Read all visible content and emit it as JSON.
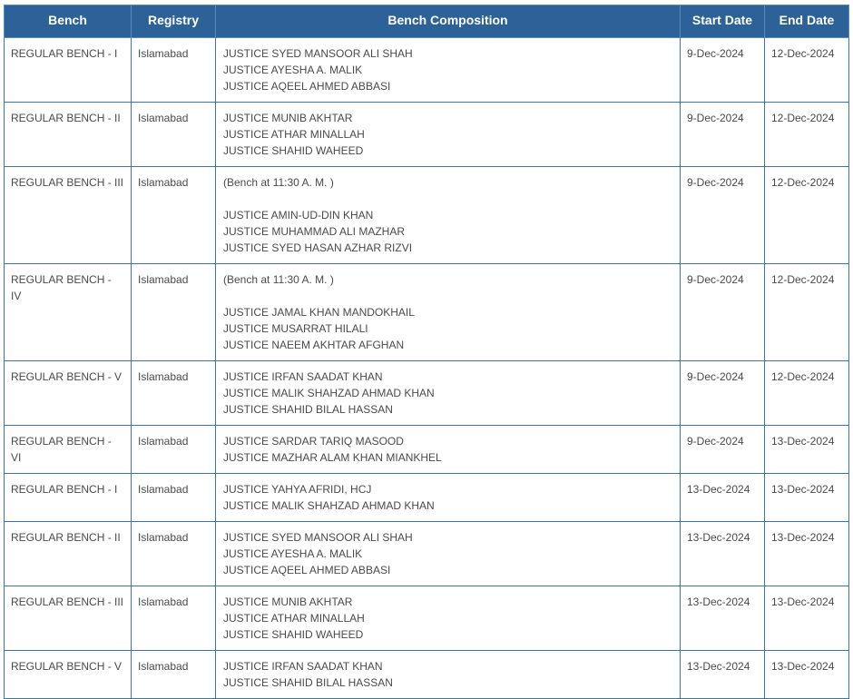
{
  "columns": {
    "bench": "Bench",
    "registry": "Registry",
    "composition": "Bench Composition",
    "start": "Start Date",
    "end": "End Date"
  },
  "rows": [
    {
      "bench": "REGULAR BENCH - I",
      "registry": "Islamabad",
      "note": "",
      "judges": [
        "JUSTICE SYED MANSOOR ALI SHAH",
        "JUSTICE AYESHA A. MALIK",
        "JUSTICE AQEEL AHMED ABBASI"
      ],
      "start": "9-Dec-2024",
      "end": "12-Dec-2024"
    },
    {
      "bench": "REGULAR BENCH - II",
      "registry": "Islamabad",
      "note": "",
      "judges": [
        "JUSTICE MUNIB AKHTAR",
        "JUSTICE ATHAR MINALLAH",
        "JUSTICE SHAHID WAHEED"
      ],
      "start": "9-Dec-2024",
      "end": "12-Dec-2024"
    },
    {
      "bench": "REGULAR BENCH - III",
      "registry": "Islamabad",
      "note": "(Bench at 11:30 A. M. )",
      "judges": [
        "JUSTICE AMIN-UD-DIN KHAN",
        "JUSTICE MUHAMMAD ALI MAZHAR",
        "JUSTICE SYED HASAN AZHAR RIZVI"
      ],
      "start": "9-Dec-2024",
      "end": "12-Dec-2024"
    },
    {
      "bench": "REGULAR BENCH - IV",
      "registry": "Islamabad",
      "note": "(Bench at 11:30 A. M. )",
      "judges": [
        "JUSTICE JAMAL KHAN MANDOKHAIL",
        "JUSTICE MUSARRAT HILALI",
        "JUSTICE NAEEM AKHTAR AFGHAN"
      ],
      "start": "9-Dec-2024",
      "end": "12-Dec-2024"
    },
    {
      "bench": "REGULAR BENCH - V",
      "registry": "Islamabad",
      "note": "",
      "judges": [
        "JUSTICE IRFAN SAADAT KHAN",
        "JUSTICE MALIK SHAHZAD AHMAD KHAN",
        "JUSTICE SHAHID BILAL HASSAN"
      ],
      "start": "9-Dec-2024",
      "end": "12-Dec-2024"
    },
    {
      "bench": "REGULAR BENCH - VI",
      "registry": "Islamabad",
      "note": "",
      "judges": [
        "JUSTICE SARDAR TARIQ MASOOD",
        "JUSTICE MAZHAR ALAM KHAN MIANKHEL"
      ],
      "start": "9-Dec-2024",
      "end": "13-Dec-2024"
    },
    {
      "bench": "REGULAR BENCH - I",
      "registry": "Islamabad",
      "note": "",
      "judges": [
        "JUSTICE YAHYA AFRIDI, HCJ",
        "JUSTICE MALIK SHAHZAD AHMAD KHAN"
      ],
      "start": "13-Dec-2024",
      "end": "13-Dec-2024"
    },
    {
      "bench": "REGULAR BENCH - II",
      "registry": "Islamabad",
      "note": "",
      "judges": [
        "JUSTICE SYED MANSOOR ALI SHAH",
        "JUSTICE AYESHA A. MALIK",
        "JUSTICE AQEEL AHMED ABBASI"
      ],
      "start": "13-Dec-2024",
      "end": "13-Dec-2024"
    },
    {
      "bench": "REGULAR BENCH - III",
      "registry": "Islamabad",
      "note": "",
      "judges": [
        "JUSTICE MUNIB AKHTAR",
        "JUSTICE ATHAR MINALLAH",
        "JUSTICE SHAHID WAHEED"
      ],
      "start": "13-Dec-2024",
      "end": "13-Dec-2024"
    },
    {
      "bench": "REGULAR BENCH - V",
      "registry": "Islamabad",
      "note": "",
      "judges": [
        "JUSTICE IRFAN SAADAT KHAN",
        "JUSTICE SHAHID BILAL HASSAN"
      ],
      "start": "13-Dec-2024",
      "end": "13-Dec-2024"
    }
  ]
}
